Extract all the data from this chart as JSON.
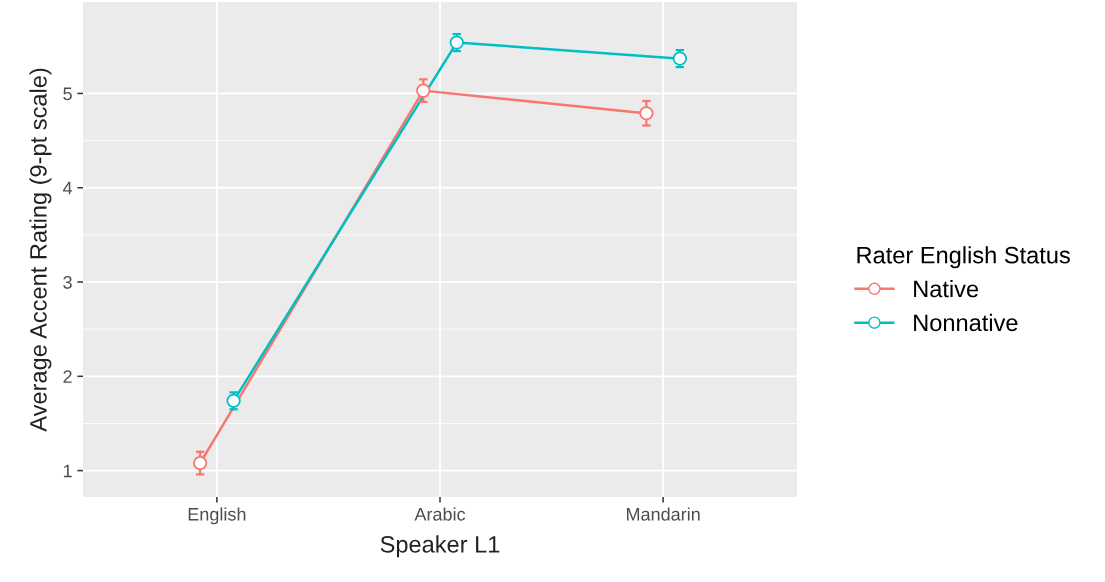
{
  "chart_data": {
    "type": "line",
    "xlabel": "Speaker L1",
    "ylabel": "Average Accent Rating (9-pt scale)",
    "legend_title": "Rater English Status",
    "categories": [
      "English",
      "Arabic",
      "Mandarin"
    ],
    "series": [
      {
        "name": "Native",
        "color": "#f8766d",
        "values": [
          1.08,
          5.03,
          4.79
        ],
        "errors": [
          0.12,
          0.12,
          0.13
        ]
      },
      {
        "name": "Nonnative",
        "color": "#00bfc4",
        "values": [
          1.74,
          5.54,
          5.37
        ],
        "errors": [
          0.09,
          0.09,
          0.09
        ]
      }
    ],
    "ylim": [
      0.72,
      5.97
    ],
    "yticks": [
      1,
      2,
      3,
      4,
      5
    ],
    "grid": true,
    "legend": "right",
    "marker": "circle",
    "line_style": "solid"
  }
}
